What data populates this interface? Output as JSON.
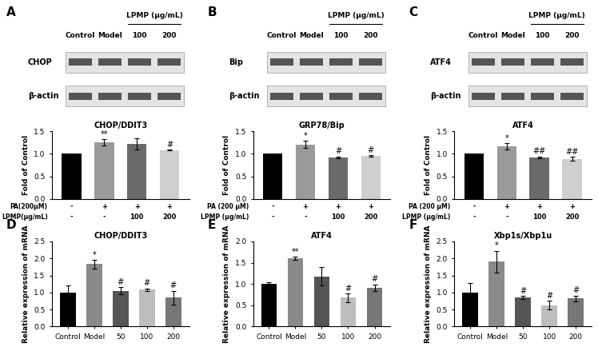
{
  "chart_data": [
    {
      "type": "bar",
      "panel": "A",
      "title": "CHOP/DDIT3",
      "y_label": "Fold of Control",
      "categories": [
        null,
        null,
        null,
        null
      ],
      "values": [
        1.0,
        1.25,
        1.22,
        1.08
      ],
      "errors": [
        0.01,
        0.07,
        0.13,
        0.01
      ],
      "significance": [
        null,
        "**",
        null,
        "#"
      ],
      "colors": [
        "#000000",
        "#9a9a9a",
        "#6a6a6a",
        "#cfcfcf"
      ],
      "treatments": [
        {
          "name": "PA(200μM)",
          "values": [
            "-",
            "+",
            "+",
            "+"
          ]
        },
        {
          "name": "LPMP(μg/mL)",
          "values": [
            "-",
            "-",
            "100",
            "200"
          ]
        }
      ],
      "ylim": [
        0,
        1.5
      ],
      "yticks": [
        {
          "value": 0,
          "label": "0.0"
        },
        {
          "value": 0.5,
          "label": "0.5"
        },
        {
          "value": 1.0,
          "label": "1.0"
        },
        {
          "value": 1.5,
          "label": "1.5"
        }
      ]
    },
    {
      "type": "bar",
      "panel": "B",
      "title": "GRP78/Bip",
      "y_label": "Fold of Control",
      "categories": [
        null,
        null,
        null,
        null
      ],
      "values": [
        1.0,
        1.21,
        0.92,
        0.95
      ],
      "errors": [
        0.01,
        0.08,
        0.02,
        0.02
      ],
      "significance": [
        null,
        "*",
        "#",
        "#"
      ],
      "colors": [
        "#000000",
        "#9a9a9a",
        "#6a6a6a",
        "#cfcfcf"
      ],
      "treatments": [
        {
          "name": "PA (200 μM)",
          "values": [
            "-",
            "+",
            "+",
            "+"
          ]
        },
        {
          "name": "LPMP (μg/mL)",
          "values": [
            "-",
            "-",
            "100",
            "200"
          ]
        }
      ],
      "ylim": [
        0,
        1.5
      ],
      "yticks": [
        {
          "value": 0,
          "label": "0.0"
        },
        {
          "value": 0.5,
          "label": "0.5"
        },
        {
          "value": 1.0,
          "label": "1.0"
        },
        {
          "value": 1.5,
          "label": "1.5"
        }
      ]
    },
    {
      "type": "bar",
      "panel": "C",
      "title": "ATF4",
      "y_label": "Fold of Control",
      "categories": [
        null,
        null,
        null,
        null
      ],
      "values": [
        1.0,
        1.17,
        0.92,
        0.89
      ],
      "errors": [
        0.01,
        0.07,
        0.02,
        0.04
      ],
      "significance": [
        null,
        "*",
        "##",
        "##"
      ],
      "colors": [
        "#000000",
        "#9a9a9a",
        "#6a6a6a",
        "#cfcfcf"
      ],
      "treatments": [
        {
          "name": "PA (200 μM)",
          "values": [
            "-",
            "+",
            "+",
            "+"
          ]
        },
        {
          "name": "LPMP (μg/mL)",
          "values": [
            "-",
            "-",
            "100",
            "200"
          ]
        }
      ],
      "ylim": [
        0,
        1.5
      ],
      "yticks": [
        {
          "value": 0,
          "label": "0.0"
        },
        {
          "value": 0.5,
          "label": "0.5"
        },
        {
          "value": 1.0,
          "label": "1.0"
        },
        {
          "value": 1.5,
          "label": "1.5"
        }
      ]
    },
    {
      "type": "bar",
      "panel": "D",
      "title": "CHOP/DDIT3",
      "y_label": "Relative expression of mRNA",
      "categories": [
        "Control",
        "Model",
        "50",
        "100",
        "200"
      ],
      "values": [
        1.0,
        1.83,
        1.05,
        1.08,
        0.85
      ],
      "errors": [
        0.2,
        0.13,
        0.1,
        0.04,
        0.2
      ],
      "significance": [
        null,
        "*",
        "#",
        "#",
        "#"
      ],
      "colors": [
        "#000000",
        "#8a8a8a",
        "#555555",
        "#bdbdbd",
        "#777777"
      ],
      "ylim": [
        0,
        2.5
      ],
      "yticks": [
        {
          "value": 0,
          "label": "0.0"
        },
        {
          "value": 0.5,
          "label": "0.5"
        },
        {
          "value": 1.0,
          "label": "1.0"
        },
        {
          "value": 1.5,
          "label": "1.5"
        },
        {
          "value": 2.0,
          "label": "2.0"
        },
        {
          "value": 2.5,
          "label": "2.5"
        }
      ]
    },
    {
      "type": "bar",
      "panel": "E",
      "title": "ATF4",
      "y_label": "Relative expression of mRNA",
      "categories": [
        "Control",
        "Model",
        "50",
        "100",
        "200"
      ],
      "values": [
        1.0,
        1.6,
        1.18,
        0.68,
        0.91
      ],
      "errors": [
        0.05,
        0.04,
        0.22,
        0.1,
        0.08
      ],
      "significance": [
        null,
        "**",
        null,
        "#",
        "#"
      ],
      "colors": [
        "#000000",
        "#8a8a8a",
        "#555555",
        "#bdbdbd",
        "#777777"
      ],
      "ylim": [
        0,
        2.0
      ],
      "yticks": [
        {
          "value": 0,
          "label": "0.0"
        },
        {
          "value": 0.5,
          "label": "0.5"
        },
        {
          "value": 1.0,
          "label": "1.0"
        },
        {
          "value": 1.5,
          "label": "1.5"
        },
        {
          "value": 2.0,
          "label": "2.0"
        }
      ]
    },
    {
      "type": "bar",
      "panel": "F",
      "title": "Xbp1s/Xbp1u",
      "y_label": "Relative expression of mRNA",
      "categories": [
        "Control",
        "Model",
        "50",
        "100",
        "200"
      ],
      "values": [
        1.0,
        1.9,
        0.85,
        0.63,
        0.83
      ],
      "errors": [
        0.28,
        0.32,
        0.05,
        0.13,
        0.08
      ],
      "significance": [
        null,
        "*",
        "#",
        "#",
        "#"
      ],
      "colors": [
        "#000000",
        "#8a8a8a",
        "#555555",
        "#bdbdbd",
        "#777777"
      ],
      "ylim": [
        0,
        2.5
      ],
      "yticks": [
        {
          "value": 0,
          "label": "0.0"
        },
        {
          "value": 0.5,
          "label": "0.5"
        },
        {
          "value": 1.0,
          "label": "1.0"
        },
        {
          "value": 1.5,
          "label": "1.5"
        },
        {
          "value": 2.0,
          "label": "2.0"
        },
        {
          "value": 2.5,
          "label": "2.5"
        }
      ]
    }
  ],
  "blots": [
    {
      "lanes": [
        "Control",
        "Model"
      ],
      "group": {
        "label": "LPMP (μg/mL)",
        "lanes": [
          "100",
          "200"
        ]
      },
      "rows": [
        "CHOP",
        "β-actin"
      ]
    },
    {
      "lanes": [
        "Control",
        "Model"
      ],
      "group": {
        "label": "LPMP (μg/mL)",
        "lanes": [
          "100",
          "200"
        ]
      },
      "rows": [
        "Bip",
        "β-actin"
      ]
    },
    {
      "lanes": [
        "Control",
        "Model"
      ],
      "group": {
        "label": "LPMP (μg/mL)",
        "lanes": [
          "100",
          "200"
        ]
      },
      "rows": [
        "ATF4",
        "β-actin"
      ]
    }
  ]
}
